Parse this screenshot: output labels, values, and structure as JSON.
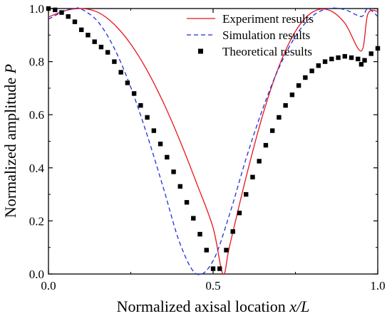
{
  "chart_data": {
    "type": "line",
    "xlabel": "Normalized axisal location ",
    "xlabel_var": "x/L",
    "ylabel": "Normalized amplitude ",
    "ylabel_var": "P",
    "xlim": [
      0.0,
      1.0
    ],
    "ylim": [
      0.0,
      1.0
    ],
    "x_ticks": [
      0.0,
      0.5,
      1.0
    ],
    "x_tick_labels": [
      "0.0",
      "0.5",
      "1.0"
    ],
    "y_ticks": [
      0.0,
      0.2,
      0.4,
      0.6,
      0.8,
      1.0
    ],
    "y_tick_labels": [
      "0.0",
      "0.2",
      "0.4",
      "0.6",
      "0.8",
      "1.0"
    ],
    "grid": false,
    "legend_position": "top-right",
    "colors": {
      "experiment": "#e8141b",
      "simulation": "#1f2fd6",
      "theory": "#000000"
    },
    "series": [
      {
        "name": "Experiment results",
        "style": "solid-line",
        "x": [
          0.0,
          0.05,
          0.1,
          0.15,
          0.2,
          0.25,
          0.3,
          0.35,
          0.4,
          0.45,
          0.5,
          0.53,
          0.55,
          0.6,
          0.65,
          0.7,
          0.75,
          0.8,
          0.85,
          0.9,
          0.95,
          0.97,
          1.0
        ],
        "y": [
          0.968,
          0.992,
          1.0,
          0.986,
          0.94,
          0.866,
          0.766,
          0.643,
          0.5,
          0.342,
          0.174,
          0.0,
          0.105,
          0.364,
          0.596,
          0.782,
          0.914,
          0.985,
          0.995,
          0.945,
          0.84,
          0.98,
          0.99
        ]
      },
      {
        "name": "Simulation results",
        "style": "dashed-line",
        "x": [
          0.0,
          0.05,
          0.08,
          0.1,
          0.15,
          0.2,
          0.25,
          0.3,
          0.35,
          0.4,
          0.45,
          0.5,
          0.55,
          0.6,
          0.65,
          0.7,
          0.75,
          0.8,
          0.85,
          0.9,
          0.95,
          0.97,
          1.0
        ],
        "y": [
          0.96,
          0.992,
          1.0,
          0.998,
          0.951,
          0.85,
          0.703,
          0.522,
          0.32,
          0.113,
          0.0,
          0.05,
          0.225,
          0.434,
          0.62,
          0.777,
          0.895,
          0.97,
          1.0,
          0.996,
          0.97,
          1.0,
          0.97
        ]
      },
      {
        "name": "Theoretical results",
        "style": "square-markers",
        "x": [
          0.0,
          0.02,
          0.04,
          0.06,
          0.08,
          0.1,
          0.12,
          0.14,
          0.16,
          0.18,
          0.2,
          0.22,
          0.24,
          0.26,
          0.28,
          0.3,
          0.32,
          0.34,
          0.36,
          0.38,
          0.4,
          0.42,
          0.44,
          0.46,
          0.48,
          0.5,
          0.52,
          0.54,
          0.56,
          0.58,
          0.6,
          0.62,
          0.64,
          0.66,
          0.68,
          0.7,
          0.72,
          0.74,
          0.76,
          0.78,
          0.8,
          0.82,
          0.84,
          0.86,
          0.88,
          0.9,
          0.92,
          0.94,
          0.95,
          0.96,
          0.98,
          1.0
        ],
        "y": [
          1.0,
          0.995,
          0.985,
          0.97,
          0.95,
          0.92,
          0.9,
          0.875,
          0.855,
          0.835,
          0.8,
          0.76,
          0.72,
          0.68,
          0.635,
          0.59,
          0.54,
          0.49,
          0.44,
          0.385,
          0.33,
          0.27,
          0.21,
          0.15,
          0.09,
          0.02,
          0.02,
          0.09,
          0.16,
          0.23,
          0.3,
          0.365,
          0.425,
          0.485,
          0.54,
          0.59,
          0.635,
          0.675,
          0.71,
          0.74,
          0.765,
          0.785,
          0.8,
          0.81,
          0.815,
          0.82,
          0.815,
          0.81,
          0.79,
          0.805,
          0.83,
          0.85
        ]
      }
    ]
  }
}
